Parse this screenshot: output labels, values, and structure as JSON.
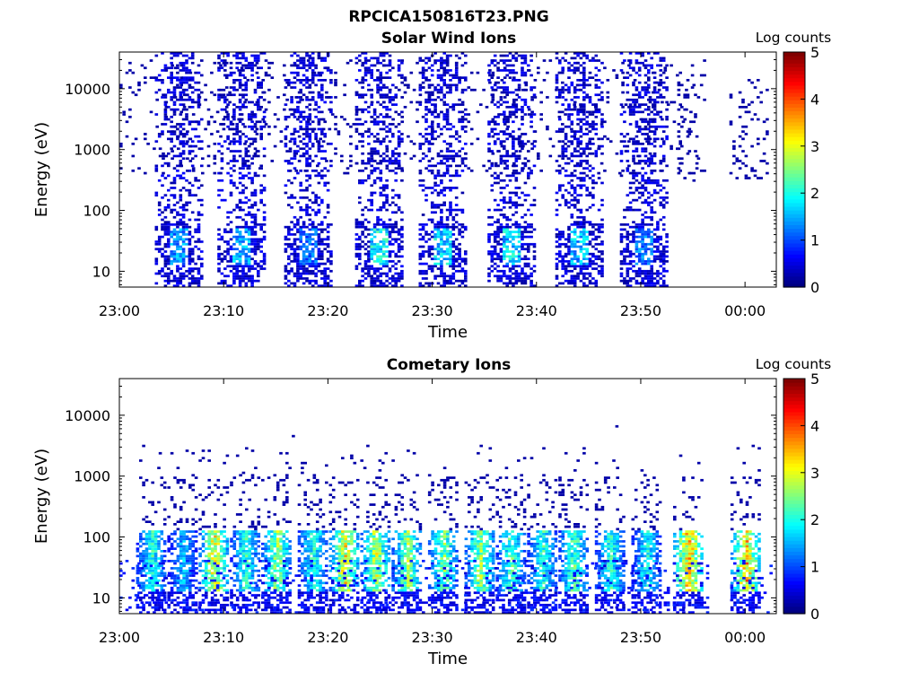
{
  "figure_title": "RPCICA150816T23.PNG",
  "chart_data": [
    {
      "type": "heatmap",
      "title": "Solar Wind Ions",
      "xlabel": "Time",
      "ylabel": "Energy (eV)",
      "x_ticks": [
        "23:00",
        "23:10",
        "23:20",
        "23:30",
        "23:40",
        "23:50",
        "00:00"
      ],
      "y_scale": "log",
      "y_ticks": [
        "10",
        "100",
        "1000",
        "10000"
      ],
      "ylim": [
        5.5,
        40000
      ],
      "xlim_minutes": [
        0,
        63
      ],
      "colorbar": {
        "label": "Log counts",
        "ticks": [
          "0",
          "1",
          "2",
          "3",
          "4",
          "5"
        ],
        "range": [
          0,
          5
        ],
        "colormap": "jet"
      },
      "bursts": [
        {
          "center_min": 5.6,
          "peak_log_counts": 1.8
        },
        {
          "center_min": 11.6,
          "peak_log_counts": 1.9
        },
        {
          "center_min": 18.0,
          "peak_log_counts": 1.5
        },
        {
          "center_min": 24.8,
          "peak_log_counts": 2.4
        },
        {
          "center_min": 30.9,
          "peak_log_counts": 2.2
        },
        {
          "center_min": 37.5,
          "peak_log_counts": 2.2
        },
        {
          "center_min": 44.0,
          "peak_log_counts": 2.0
        },
        {
          "center_min": 50.2,
          "peak_log_counts": 1.6
        }
      ],
      "sparse_segments_min": [
        [
          53.5,
          55.5
        ],
        [
          58.5,
          62
        ]
      ]
    },
    {
      "type": "heatmap",
      "title": "Cometary Ions",
      "xlabel": "Time",
      "ylabel": "Energy (eV)",
      "x_ticks": [
        "23:00",
        "23:10",
        "23:20",
        "23:30",
        "23:40",
        "23:50",
        "00:00"
      ],
      "y_scale": "log",
      "y_ticks": [
        "10",
        "100",
        "1000",
        "10000"
      ],
      "ylim": [
        5.5,
        40000
      ],
      "xlim_minutes": [
        0,
        63
      ],
      "colorbar": {
        "label": "Log counts",
        "ticks": [
          "0",
          "1",
          "2",
          "3",
          "4",
          "5"
        ],
        "range": [
          0,
          5
        ],
        "colormap": "jet"
      },
      "bursts": [
        {
          "center_min": 3.0,
          "peak_log_counts": 2.6
        },
        {
          "center_min": 6.0,
          "peak_log_counts": 2.0
        },
        {
          "center_min": 9.0,
          "peak_log_counts": 3.8
        },
        {
          "center_min": 12.0,
          "peak_log_counts": 2.6
        },
        {
          "center_min": 15.0,
          "peak_log_counts": 3.2
        },
        {
          "center_min": 18.5,
          "peak_log_counts": 2.6
        },
        {
          "center_min": 21.5,
          "peak_log_counts": 3.8
        },
        {
          "center_min": 24.5,
          "peak_log_counts": 3.4
        },
        {
          "center_min": 27.5,
          "peak_log_counts": 3.2
        },
        {
          "center_min": 31.0,
          "peak_log_counts": 3.0
        },
        {
          "center_min": 34.5,
          "peak_log_counts": 3.2
        },
        {
          "center_min": 37.5,
          "peak_log_counts": 2.8
        },
        {
          "center_min": 40.5,
          "peak_log_counts": 2.6
        },
        {
          "center_min": 43.5,
          "peak_log_counts": 2.8
        },
        {
          "center_min": 47.0,
          "peak_log_counts": 2.6
        },
        {
          "center_min": 50.5,
          "peak_log_counts": 2.4
        },
        {
          "center_min": 54.5,
          "peak_log_counts": 4.3
        },
        {
          "center_min": 60.0,
          "peak_log_counts": 4.2
        }
      ]
    }
  ]
}
